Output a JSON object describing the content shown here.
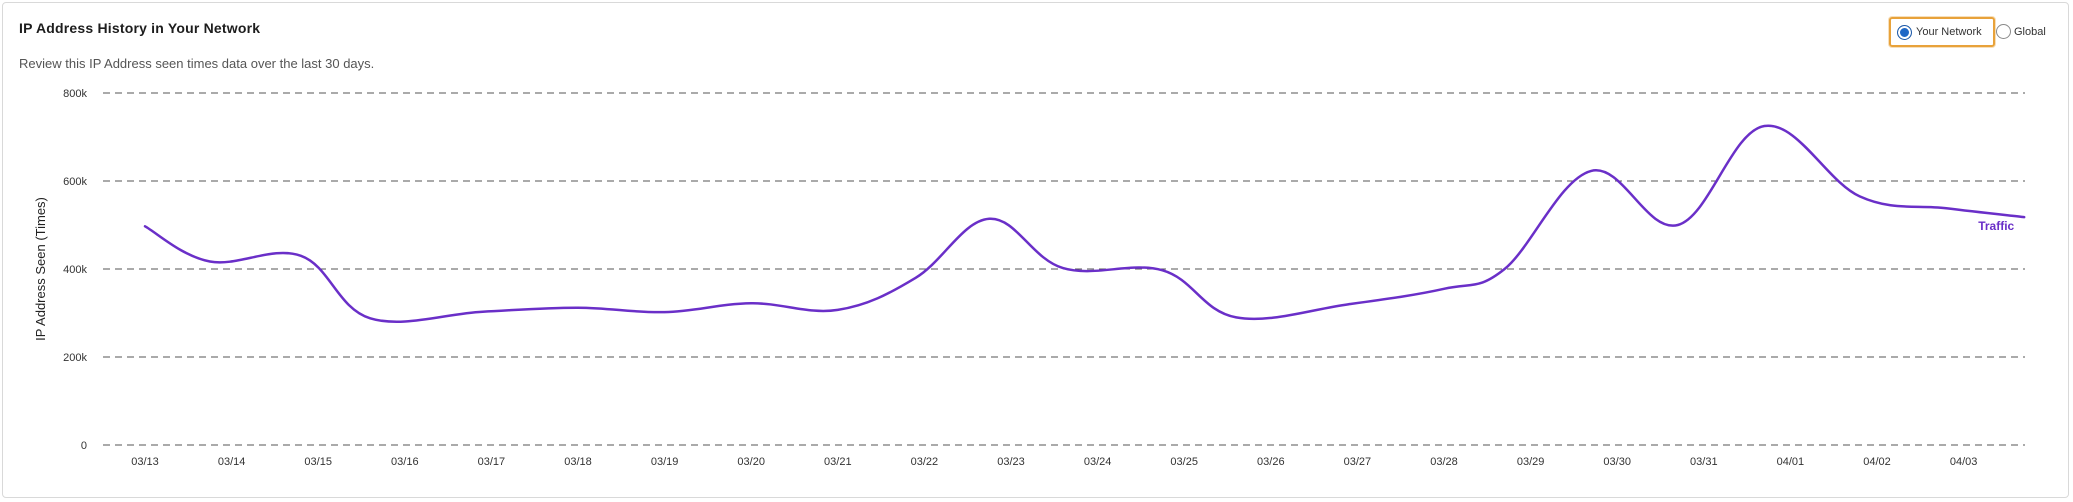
{
  "header": {
    "title": "IP Address History in Your Network",
    "subtitle": "Review this IP Address seen times data over the last 30 days."
  },
  "scope_toggle": {
    "options": [
      {
        "label": "Your Network",
        "selected": true
      },
      {
        "label": "Global",
        "selected": false
      }
    ]
  },
  "colors": {
    "series": "#6a2fc8",
    "grid": "#555555",
    "focus_outline": "#e8a23a",
    "radio_selected": "#1f68c6"
  },
  "chart_data": {
    "type": "line",
    "title": "",
    "xlabel": "",
    "ylabel": "IP Address Seen (Times)",
    "ylim": [
      0,
      800000
    ],
    "yticks": [
      {
        "value": 0,
        "label": "0"
      },
      {
        "value": 200000,
        "label": "200k"
      },
      {
        "value": 400000,
        "label": "400k"
      },
      {
        "value": 600000,
        "label": "600k"
      },
      {
        "value": 800000,
        "label": "800k"
      }
    ],
    "categories": [
      "03/13",
      "03/14",
      "03/15",
      "03/16",
      "03/17",
      "03/18",
      "03/19",
      "03/20",
      "03/21",
      "03/22",
      "03/23",
      "03/24",
      "03/25",
      "03/26",
      "03/27",
      "03/28",
      "03/29",
      "03/30",
      "03/31",
      "04/01",
      "04/02",
      "04/03"
    ],
    "grid": "horizontal-dashed",
    "legend": "inline-end-of-line",
    "series": [
      {
        "name": "Traffic",
        "points": [
          {
            "x": 0,
            "y": 497000
          },
          {
            "x": 0.75,
            "y": 417000
          },
          {
            "x": 1.8,
            "y": 430000
          },
          {
            "x": 2.6,
            "y": 288000
          },
          {
            "x": 3.9,
            "y": 303000
          },
          {
            "x": 5.0,
            "y": 312000
          },
          {
            "x": 6.0,
            "y": 302000
          },
          {
            "x": 7.0,
            "y": 322000
          },
          {
            "x": 8.0,
            "y": 307000
          },
          {
            "x": 8.9,
            "y": 380000
          },
          {
            "x": 9.75,
            "y": 514000
          },
          {
            "x": 10.6,
            "y": 402000
          },
          {
            "x": 11.75,
            "y": 397000
          },
          {
            "x": 12.6,
            "y": 290000
          },
          {
            "x": 13.9,
            "y": 320000
          },
          {
            "x": 15.0,
            "y": 355000
          },
          {
            "x": 15.7,
            "y": 400000
          },
          {
            "x": 16.7,
            "y": 623000
          },
          {
            "x": 17.7,
            "y": 500000
          },
          {
            "x": 18.7,
            "y": 725000
          },
          {
            "x": 19.8,
            "y": 565000
          },
          {
            "x": 20.8,
            "y": 538000
          },
          {
            "x": 21.7,
            "y": 518000
          }
        ]
      }
    ]
  }
}
